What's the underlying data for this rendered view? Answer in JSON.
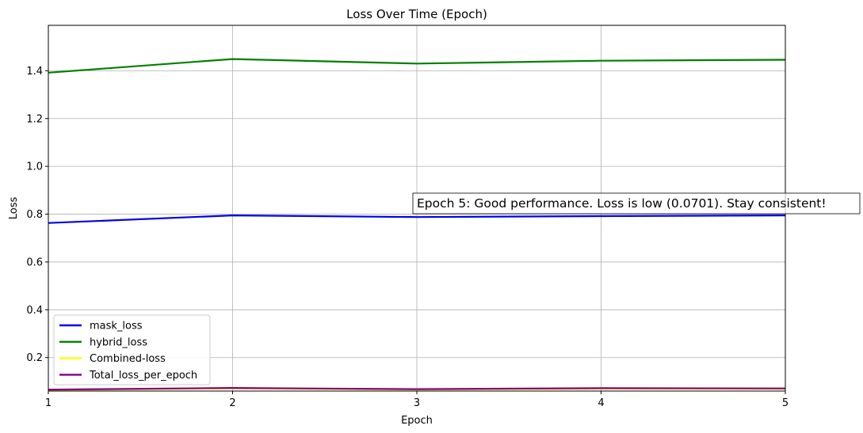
{
  "chart_data": {
    "type": "line",
    "title": "Loss Over Time (Epoch)",
    "xlabel": "Epoch",
    "ylabel": "Loss",
    "x": [
      1,
      2,
      3,
      4,
      5
    ],
    "xlim": [
      1,
      5
    ],
    "ylim": [
      0.06,
      1.59
    ],
    "xticks": [
      "1",
      "2",
      "3",
      "4",
      "5"
    ],
    "yticks": [
      {
        "value": 0.2,
        "label": "0.2"
      },
      {
        "value": 0.4,
        "label": "0.4"
      },
      {
        "value": 0.6,
        "label": "0.6"
      },
      {
        "value": 0.8,
        "label": "0.8"
      },
      {
        "value": 1.0,
        "label": "1.0"
      },
      {
        "value": 1.2,
        "label": "1.2"
      },
      {
        "value": 1.4,
        "label": "1.4"
      }
    ],
    "grid": true,
    "legend_position": "lower-left",
    "series": [
      {
        "name": "mask_loss",
        "color": "#0000ee",
        "values": [
          0.763,
          0.795,
          0.788,
          0.792,
          0.795
        ]
      },
      {
        "name": "hybrid_loss",
        "color": "#008000",
        "values": [
          1.392,
          1.449,
          1.43,
          1.442,
          1.446
        ]
      },
      {
        "name": "Combined-loss",
        "color": "#ffff00",
        "values": [
          0.064,
          0.071,
          0.066,
          0.07,
          0.069
        ]
      },
      {
        "name": "Total_loss_per_epoch",
        "color": "#800080",
        "values": [
          0.066,
          0.073,
          0.068,
          0.072,
          0.071
        ]
      }
    ],
    "annotation": {
      "text": "Epoch 5: Good performance. Loss is low (0.0701). Stay consistent!",
      "anchor_x": 5,
      "anchor_y": 0.8
    }
  }
}
